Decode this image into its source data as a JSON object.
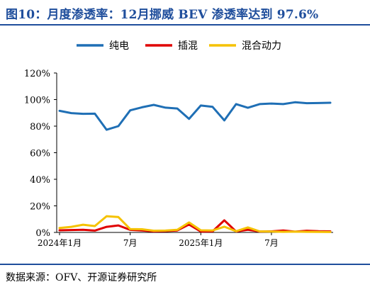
{
  "header": {
    "title": "图10：月度渗透率：12月挪威 BEV 渗透率达到 97.6%"
  },
  "footer": {
    "source": "数据来源：OFV、开源证券研究所"
  },
  "chart_data": {
    "type": "line",
    "title": "",
    "xlabel": "",
    "ylabel": "",
    "ylim": [
      0,
      120
    ],
    "y_ticks": [
      "0%",
      "20%",
      "40%",
      "60%",
      "80%",
      "100%",
      "120%"
    ],
    "x_ticks": [
      {
        "index": 0,
        "label": "2024年1月"
      },
      {
        "index": 6,
        "label": "7月"
      },
      {
        "index": 12,
        "label": "2025年1月"
      },
      {
        "index": 18,
        "label": "7月"
      }
    ],
    "x": [
      "2024-01",
      "2024-02",
      "2024-03",
      "2024-04",
      "2024-05",
      "2024-06",
      "2024-07",
      "2024-08",
      "2024-09",
      "2024-10",
      "2024-11",
      "2024-12",
      "2025-01",
      "2025-02",
      "2025-03",
      "2025-04",
      "2025-05",
      "2025-06",
      "2025-07",
      "2025-08",
      "2025-09",
      "2025-10",
      "2025-11",
      "2025-12"
    ],
    "grid": false,
    "legend_position": "top",
    "series": [
      {
        "name": "纯电",
        "color": "#1f6fb5",
        "values": [
          91.5,
          89.8,
          89.3,
          89.4,
          77.3,
          80.0,
          91.9,
          94.2,
          96.0,
          93.9,
          93.3,
          85.5,
          95.5,
          94.5,
          84.3,
          96.6,
          93.8,
          96.6,
          97.0,
          96.6,
          98.0,
          97.3,
          97.4,
          97.6
        ]
      },
      {
        "name": "插混",
        "color": "#e00000",
        "values": [
          1.6,
          1.8,
          2.0,
          1.4,
          4.2,
          5.3,
          1.9,
          1.5,
          0.8,
          1.0,
          1.5,
          6.0,
          0.7,
          0.8,
          9.1,
          0.7,
          2.0,
          0.7,
          0.8,
          1.5,
          0.6,
          1.3,
          0.9,
          0.8
        ]
      },
      {
        "name": "混合动力",
        "color": "#f5c200",
        "values": [
          3.3,
          4.2,
          5.8,
          4.8,
          12.2,
          11.6,
          2.5,
          2.4,
          1.3,
          1.4,
          2.0,
          7.5,
          1.6,
          1.5,
          4.3,
          0.9,
          3.8,
          0.8,
          0.7,
          0.5,
          0.6,
          0.5,
          0.4,
          0.3
        ]
      }
    ]
  }
}
